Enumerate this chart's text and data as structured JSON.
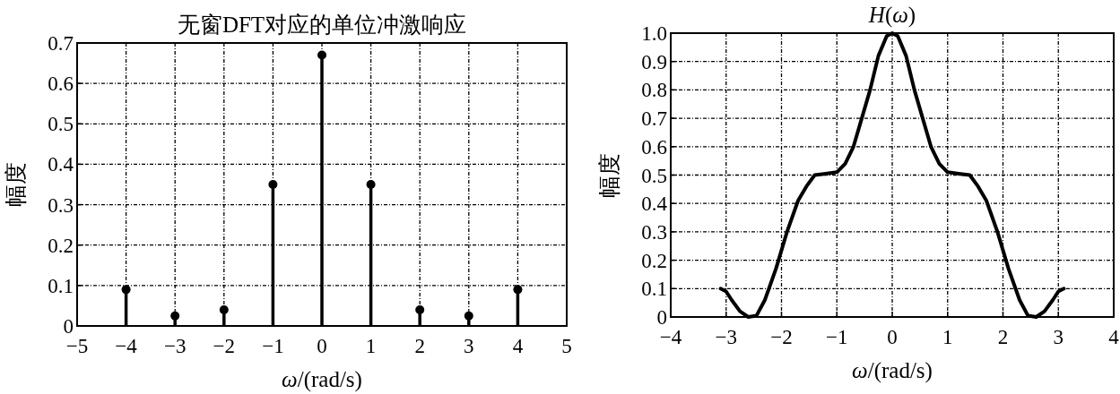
{
  "chart_data": [
    {
      "type": "lollipop",
      "title": "无窗DFT对应的单位冲激响应",
      "xlabel": "*ω*/(rad/s)",
      "ylabel": "幅度",
      "x": [
        -4,
        -3,
        -2,
        -1,
        0,
        1,
        2,
        3,
        4
      ],
      "values": [
        0.09,
        0.025,
        0.04,
        0.35,
        0.67,
        0.35,
        0.04,
        0.025,
        0.09
      ],
      "color": "#000000",
      "marker": "circle",
      "xlim": [
        -5,
        5
      ],
      "xticks": [
        -5,
        -4,
        -3,
        -2,
        -1,
        0,
        1,
        2,
        3,
        4,
        5
      ],
      "ylim": [
        0,
        0.7
      ],
      "yticks": [
        0,
        0.1,
        0.2,
        0.3,
        0.4,
        0.5,
        0.6,
        0.7
      ],
      "grid": true
    },
    {
      "type": "line",
      "title": "*H*(*ω*)",
      "xlabel": "*ω*/(rad/s)",
      "ylabel": "幅度",
      "x": [
        -3.1,
        -3.0,
        -2.9,
        -2.75,
        -2.6,
        -2.45,
        -2.3,
        -2.1,
        -1.9,
        -1.7,
        -1.55,
        -1.4,
        -1.2,
        -1.0,
        -0.85,
        -0.7,
        -0.55,
        -0.4,
        -0.25,
        -0.1,
        0,
        0.1,
        0.25,
        0.4,
        0.55,
        0.7,
        0.85,
        1.0,
        1.2,
        1.4,
        1.55,
        1.7,
        1.9,
        2.1,
        2.3,
        2.45,
        2.6,
        2.75,
        2.9,
        3.0,
        3.1
      ],
      "values": [
        0.1,
        0.09,
        0.06,
        0.02,
        0,
        0.005,
        0.06,
        0.17,
        0.3,
        0.41,
        0.46,
        0.5,
        0.505,
        0.51,
        0.54,
        0.6,
        0.7,
        0.8,
        0.92,
        0.99,
        1.0,
        0.99,
        0.92,
        0.8,
        0.7,
        0.6,
        0.54,
        0.51,
        0.505,
        0.5,
        0.46,
        0.41,
        0.3,
        0.17,
        0.06,
        0.005,
        0,
        0.02,
        0.06,
        0.09,
        0.1
      ],
      "color": "#000000",
      "xlim": [
        -4,
        4
      ],
      "xticks": [
        -4,
        -3,
        -2,
        -1,
        0,
        1,
        2,
        3,
        4
      ],
      "ylim": [
        0,
        1
      ],
      "yticks": [
        0,
        0.1,
        0.2,
        0.3,
        0.4,
        0.5,
        0.6,
        0.7,
        0.8,
        0.9,
        {
          "value": 1,
          "label": "1.0"
        }
      ],
      "grid": true
    }
  ]
}
